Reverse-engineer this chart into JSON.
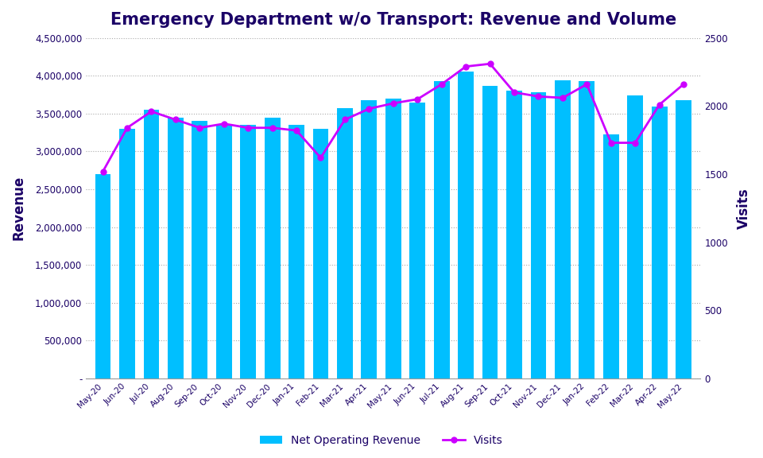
{
  "title": "Emergency Department w/o Transport: Revenue and Volume",
  "categories": [
    "May-20",
    "Jun-20",
    "Jul-20",
    "Aug-20",
    "Sep-20",
    "Oct-20",
    "Nov-20",
    "Dec-20",
    "Jan-21",
    "Feb-21",
    "Mar-21",
    "Apr-21",
    "May-21",
    "Jun-21",
    "Jul-21",
    "Aug-21",
    "Sep-21",
    "Oct-21",
    "Nov-21",
    "Dec-21",
    "Jan-22",
    "Feb-22",
    "Mar-22",
    "Apr-22",
    "May-22"
  ],
  "revenue": [
    2700000,
    3300000,
    3550000,
    3450000,
    3400000,
    3350000,
    3350000,
    3450000,
    3350000,
    3300000,
    3570000,
    3680000,
    3700000,
    3650000,
    3930000,
    4050000,
    3870000,
    3800000,
    3780000,
    3940000,
    3930000,
    3220000,
    3740000,
    3590000,
    3680000
  ],
  "visits": [
    1520,
    1840,
    1960,
    1900,
    1840,
    1870,
    1840,
    1840,
    1820,
    1620,
    1900,
    1980,
    2020,
    2050,
    2160,
    2290,
    2310,
    2100,
    2070,
    2060,
    2160,
    1730,
    1730,
    2010,
    2160
  ],
  "bar_color": "#00BFFF",
  "line_color": "#CC00FF",
  "ylabel_left": "Revenue",
  "ylabel_right": "Visits",
  "ylim_left": [
    0,
    4500000
  ],
  "ylim_right": [
    0,
    2500
  ],
  "yticks_left": [
    0,
    500000,
    1000000,
    1500000,
    2000000,
    2500000,
    3000000,
    3500000,
    4000000,
    4500000
  ],
  "yticks_right": [
    0,
    500,
    1000,
    1500,
    2000,
    2500
  ],
  "title_color": "#1a0066",
  "axis_label_color": "#1a0066",
  "tick_color": "#1a0066",
  "background_color": "#ffffff",
  "legend_revenue": "Net Operating Revenue",
  "legend_visits": "Visits",
  "bar_width": 0.65
}
